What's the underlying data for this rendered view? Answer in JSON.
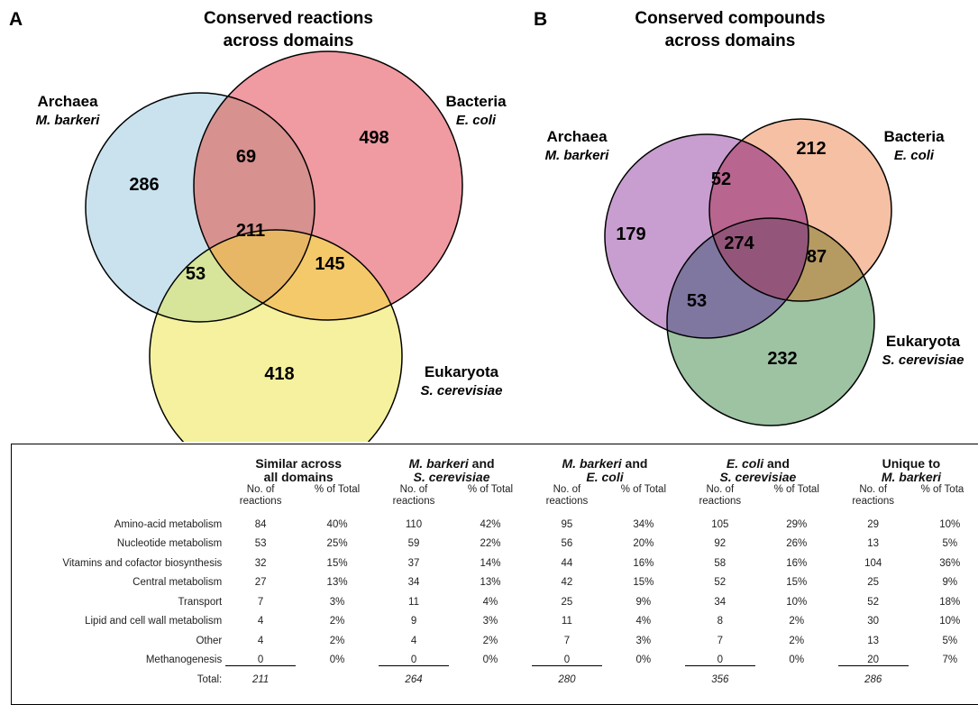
{
  "panel_a": {
    "letter": "A",
    "title_line1": "Conserved reactions",
    "title_line2": "across domains",
    "sets": [
      {
        "domain": "Archaea",
        "organism": "M. barkeri",
        "color": "#c9e2ee"
      },
      {
        "domain": "Bacteria",
        "organism": "E. coli",
        "color": "#f09aa2"
      },
      {
        "domain": "Eukaryota",
        "organism": "S. cerevisiae",
        "color": "#f6f19e"
      }
    ],
    "regions": {
      "archaea_only": "286",
      "bacteria_only": "498",
      "eukaryota_only": "418",
      "archaea_bacteria": "69",
      "archaea_eukaryota": "53",
      "bacteria_eukaryota": "145",
      "all": "211"
    }
  },
  "panel_b": {
    "letter": "B",
    "title_line1": "Conserved compounds",
    "title_line2": "across domains",
    "sets": [
      {
        "domain": "Archaea",
        "organism": "M. barkeri",
        "color": "#c89ed0"
      },
      {
        "domain": "Bacteria",
        "organism": "E. coli",
        "color": "#f6c0a4"
      },
      {
        "domain": "Eukaryota",
        "organism": "S. cerevisiae",
        "color": "#9dc3a2"
      }
    ],
    "regions": {
      "archaea_only": "179",
      "bacteria_only": "212",
      "eukaryota_only": "232",
      "archaea_bacteria": "52",
      "archaea_eukaryota": "53",
      "bacteria_eukaryota": "87",
      "all": "274"
    }
  },
  "table": {
    "groups": [
      {
        "line1": "Similar across",
        "line1_italic": "",
        "line1_rest": "",
        "line2": "all domains",
        "line2_italic": ""
      },
      {
        "line1": "",
        "line1_italic": "M. barkeri",
        "line1_rest": " and",
        "line2": "",
        "line2_italic": "S. cerevisiae"
      },
      {
        "line1": "",
        "line1_italic": "M. barkeri",
        "line1_rest": " and",
        "line2": "",
        "line2_italic": "E. coli"
      },
      {
        "line1": "",
        "line1_italic": "E. coli",
        "line1_rest": " and",
        "line2": "",
        "line2_italic": "S. cerevisiae"
      },
      {
        "line1": "Unique to",
        "line1_italic": "",
        "line1_rest": "",
        "line2": "",
        "line2_italic": "M. barkeri"
      }
    ],
    "sub_no_line1": "No. of",
    "sub_no_line2": "reactions",
    "sub_pct": "% of Total",
    "sub_pct_clipped": "% of Tota",
    "rows": [
      {
        "label": "Amino-acid metabolism",
        "values": [
          "84",
          "40%",
          "110",
          "42%",
          "95",
          "34%",
          "105",
          "29%",
          "29",
          "10%"
        ]
      },
      {
        "label": "Nucleotide metabolism",
        "values": [
          "53",
          "25%",
          "59",
          "22%",
          "56",
          "20%",
          "92",
          "26%",
          "13",
          "5%"
        ]
      },
      {
        "label": "Vitamins and cofactor biosynthesis",
        "values": [
          "32",
          "15%",
          "37",
          "14%",
          "44",
          "16%",
          "58",
          "16%",
          "104",
          "36%"
        ]
      },
      {
        "label": "Central metabolism",
        "values": [
          "27",
          "13%",
          "34",
          "13%",
          "42",
          "15%",
          "52",
          "15%",
          "25",
          "9%"
        ]
      },
      {
        "label": "Transport",
        "values": [
          "7",
          "3%",
          "11",
          "4%",
          "25",
          "9%",
          "34",
          "10%",
          "52",
          "18%"
        ]
      },
      {
        "label": "Lipid and cell wall metabolism",
        "values": [
          "4",
          "2%",
          "9",
          "3%",
          "11",
          "4%",
          "8",
          "2%",
          "30",
          "10%"
        ]
      },
      {
        "label": "Other",
        "values": [
          "4",
          "2%",
          "4",
          "2%",
          "7",
          "3%",
          "7",
          "2%",
          "13",
          "5%"
        ]
      },
      {
        "label": "Methanogenesis",
        "values": [
          "0",
          "0%",
          "0",
          "0%",
          "0",
          "0%",
          "0",
          "0%",
          "20",
          "7%"
        ]
      }
    ],
    "total_label": "Total:",
    "totals": [
      "211",
      "264",
      "280",
      "356",
      "286"
    ]
  }
}
